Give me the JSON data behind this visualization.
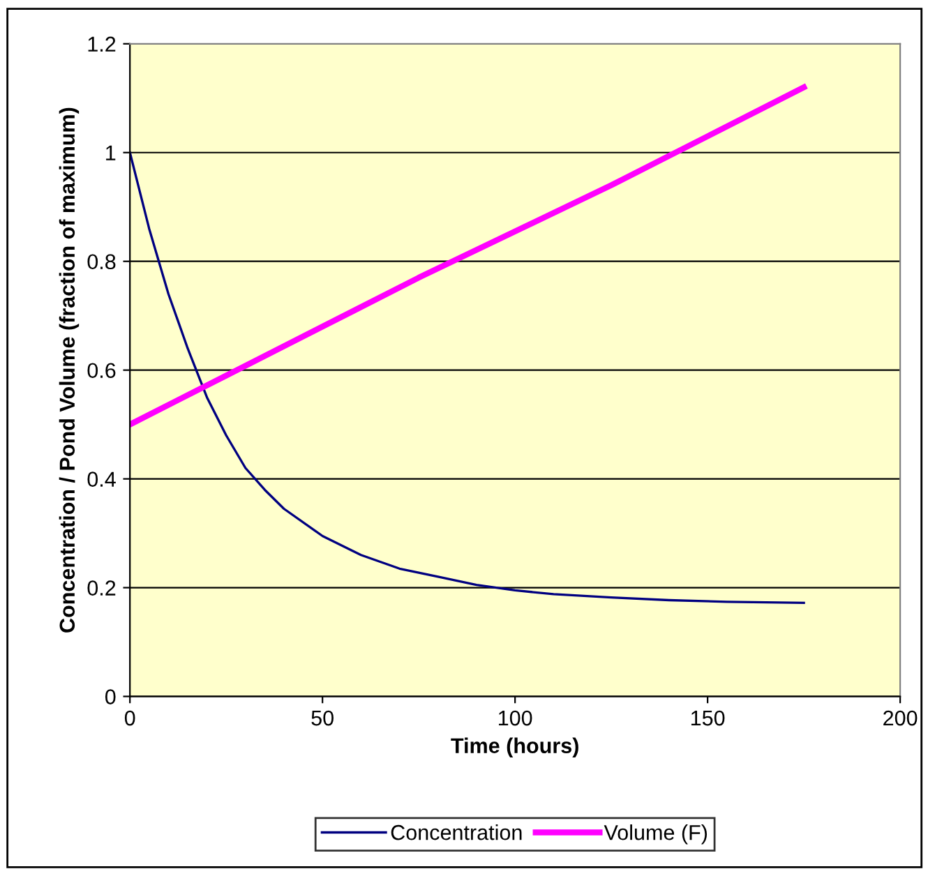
{
  "chart_data": {
    "type": "line",
    "xlabel": "Time (hours)",
    "ylabel": "Concentration / Pond Volume (fraction of maximum)",
    "xlim": [
      0,
      200
    ],
    "xticks": [
      0,
      50,
      100,
      150,
      200
    ],
    "ylim": [
      0,
      1.2
    ],
    "yticks": [
      0,
      0.2,
      0.4,
      0.6,
      0.8,
      1,
      1.2
    ],
    "grid": "y",
    "legend": "bottom",
    "marker": "none",
    "line_style": "solid",
    "series": [
      {
        "name": "Concentration",
        "color": "#000080",
        "x": [
          0,
          5,
          10,
          15,
          20,
          25,
          30,
          35,
          40,
          50,
          60,
          70,
          80,
          90,
          100,
          110,
          125,
          140,
          155,
          175
        ],
        "values": [
          1.0,
          0.86,
          0.74,
          0.64,
          0.55,
          0.48,
          0.42,
          0.38,
          0.345,
          0.295,
          0.26,
          0.235,
          0.22,
          0.205,
          0.195,
          0.188,
          0.182,
          0.177,
          0.174,
          0.172
        ]
      },
      {
        "name": "Volume (F)",
        "color": "#ff00ff",
        "x": [
          0,
          25,
          50,
          75,
          100,
          125,
          150,
          175
        ],
        "values": [
          0.5,
          0.59,
          0.68,
          0.77,
          0.855,
          0.94,
          1.03,
          1.12
        ]
      }
    ]
  }
}
